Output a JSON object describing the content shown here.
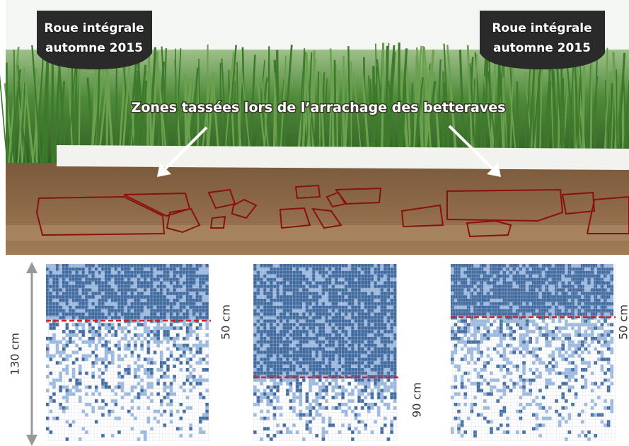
{
  "photo": {
    "wheel_left": [
      "Roue intégrale",
      "automne 2015"
    ],
    "wheel_right": [
      "Roue intégrale",
      "automne 2015"
    ],
    "caption": "Zones tassées lors de l’arrachage des betteraves"
  },
  "profiles": {
    "depth_label": "130 cm",
    "compaction_labels": [
      "50 cm",
      "90 cm",
      "50 cm"
    ]
  }
}
